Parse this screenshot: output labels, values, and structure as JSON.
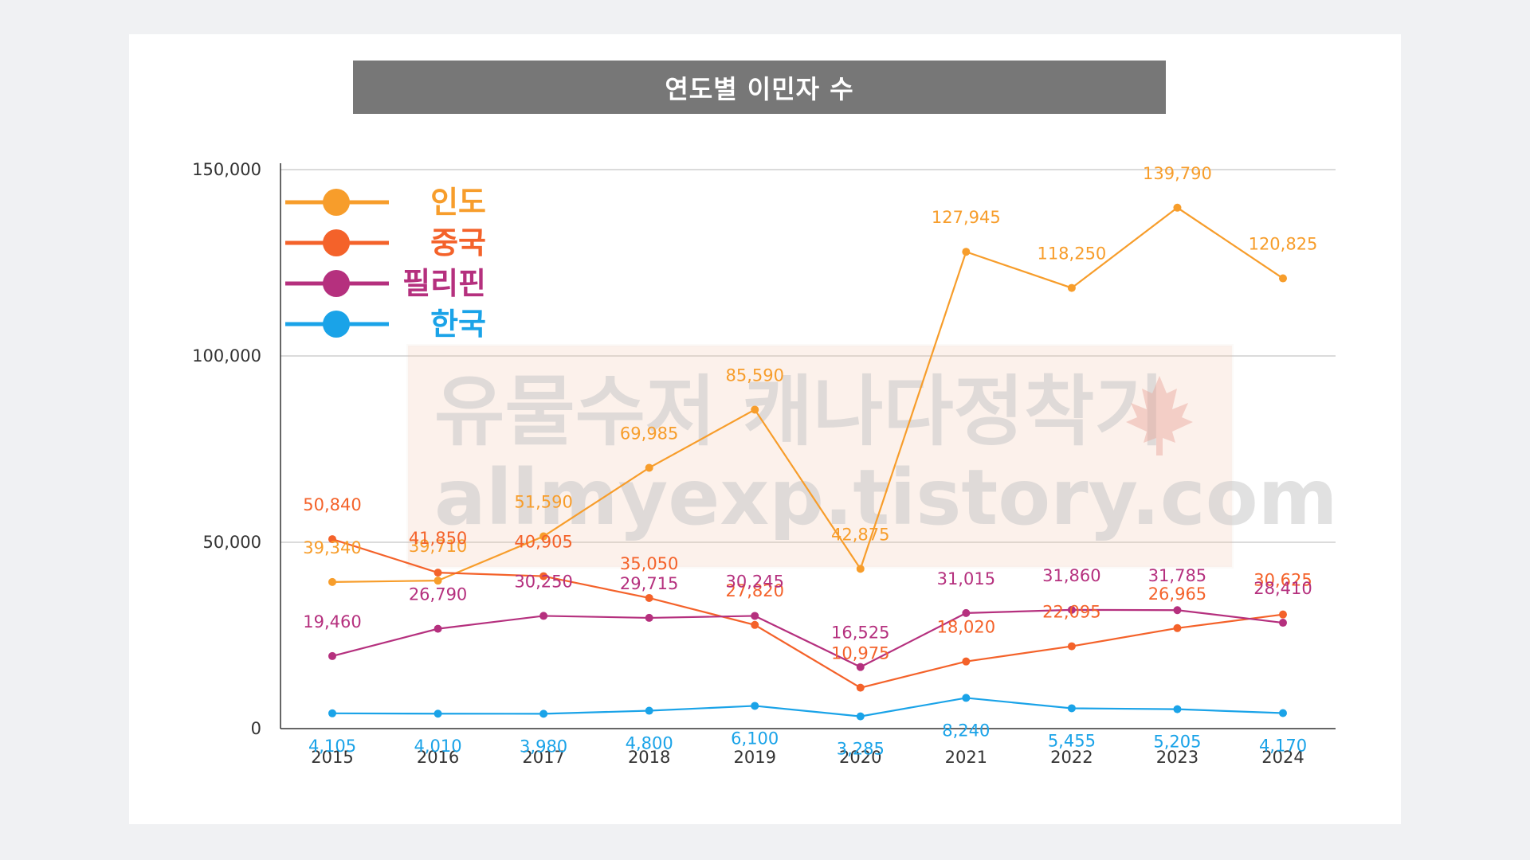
{
  "chart_data": {
    "type": "line",
    "title": "연도별 이민자 수",
    "xlabel": "",
    "ylabel": "",
    "categories": [
      "2015",
      "2016",
      "2017",
      "2018",
      "2019",
      "2020",
      "2021",
      "2022",
      "2023",
      "2024"
    ],
    "ylim": [
      0,
      150000
    ],
    "yticks": [
      0,
      50000,
      100000,
      150000
    ],
    "ytick_labels": [
      "0",
      "50,000",
      "100,000",
      "150,000"
    ],
    "grid": true,
    "legend_position": "top-left",
    "series": [
      {
        "name": "인도",
        "color": "#f79d2b",
        "values": [
          39340,
          39710,
          51590,
          69985,
          85590,
          42875,
          127945,
          118250,
          139790,
          120825
        ],
        "labels": [
          "39,340",
          "39,710",
          "51,590",
          "69,985",
          "85,590",
          "42,875",
          "127,945",
          "118,250",
          "139,790",
          "120,825"
        ]
      },
      {
        "name": "중국",
        "color": "#f4622a",
        "values": [
          50840,
          41850,
          40905,
          35050,
          27820,
          10975,
          18020,
          22095,
          26965,
          30625
        ],
        "labels": [
          "50,840",
          "41,850",
          "40,905",
          "35,050",
          "27,820",
          "10,975",
          "18,020",
          "22,095",
          "26,965",
          "30,625"
        ]
      },
      {
        "name": "필리핀",
        "color": "#b5307e",
        "values": [
          19460,
          26790,
          30250,
          29715,
          30245,
          16525,
          31015,
          31860,
          31785,
          28410
        ],
        "labels": [
          "19,460",
          "26,790",
          "30,250",
          "29,715",
          "30,245",
          "16,525",
          "31,015",
          "31,860",
          "31,785",
          "28,410"
        ]
      },
      {
        "name": "한국",
        "color": "#1aa3e8",
        "values": [
          4105,
          4010,
          3980,
          4800,
          6100,
          3285,
          8240,
          5455,
          5205,
          4170
        ],
        "labels": [
          "4,105",
          "4,010",
          "3,980",
          "4,800",
          "6,100",
          "3,285",
          "8,240",
          "5,455",
          "5,205",
          "4,170"
        ]
      }
    ]
  },
  "watermark": {
    "line1": "유물수저 캐나다정착기",
    "line2": "allmyexp.tistory.com",
    "icon": "maple-leaf-icon"
  }
}
